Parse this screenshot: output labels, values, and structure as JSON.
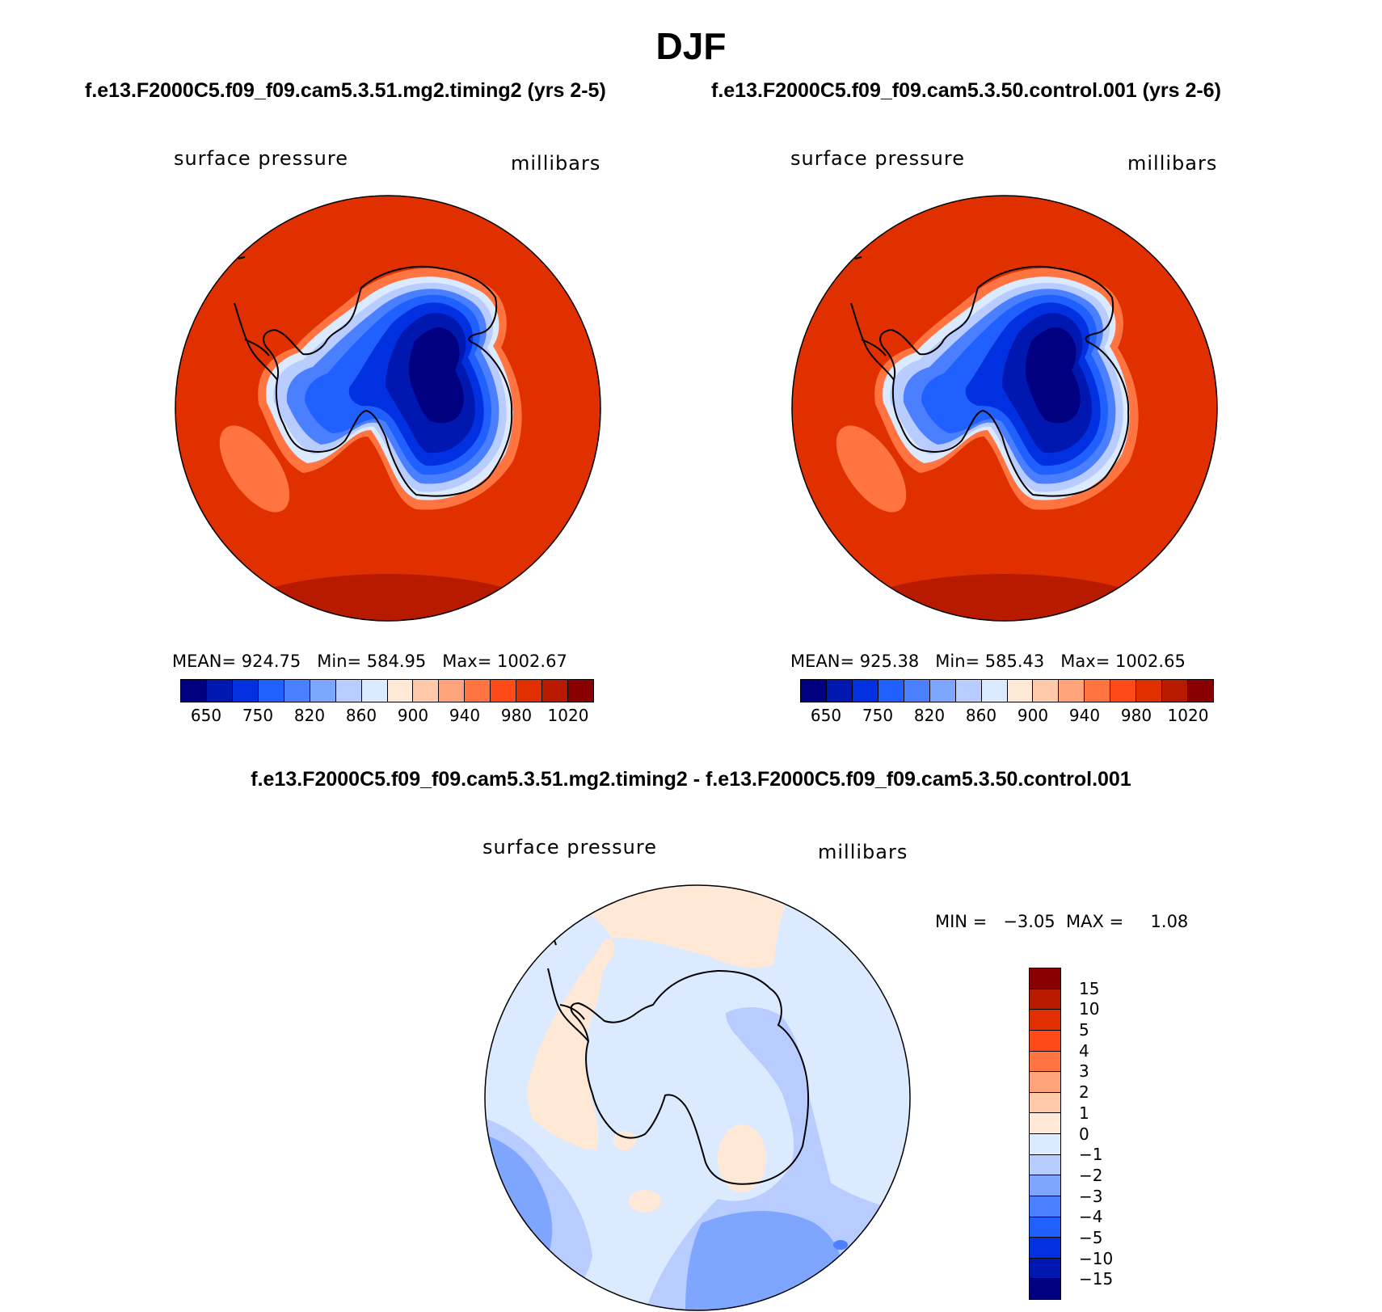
{
  "title": "DJF",
  "case_titles": {
    "left": "f.e13.F2000C5.f09_f09.cam5.3.51.mg2.timing2 (yrs 2-5)",
    "right": "f.e13.F2000C5.f09_f09.cam5.3.50.control.001 (yrs 2-6)",
    "diff": "f.e13.F2000C5.f09_f09.cam5.3.51.mg2.timing2 - f.e13.F2000C5.f09_f09.cam5.3.50.control.001"
  },
  "panels": {
    "left": {
      "variable": "surface pressure",
      "units": "millibars",
      "stats": "MEAN= 924.75   Min= 584.95   Max= 1002.67"
    },
    "right": {
      "variable": "surface pressure",
      "units": "millibars",
      "stats": "MEAN= 925.38   Min= 585.43   Max= 1002.65"
    },
    "diff": {
      "variable": "surface pressure",
      "units": "millibars",
      "stats": "MIN =   −3.05  MAX =     1.08"
    }
  },
  "colorbar_main": {
    "colors": [
      "#000080",
      "#0018b0",
      "#0030e0",
      "#2060ff",
      "#4a80ff",
      "#7ea6ff",
      "#b8ccff",
      "#dceaff",
      "#ffe8d6",
      "#ffc9aa",
      "#ffa37a",
      "#ff7440",
      "#ff4a18",
      "#e03000",
      "#b81a00",
      "#880000"
    ],
    "tick_labels": [
      "650",
      "750",
      "820",
      "860",
      "900",
      "940",
      "980",
      "1020"
    ]
  },
  "colorbar_diff": {
    "colors": [
      "#880000",
      "#b81a00",
      "#e03000",
      "#ff4a18",
      "#ff7440",
      "#ffa37a",
      "#ffc9aa",
      "#ffe8d6",
      "#dceaff",
      "#b8ccff",
      "#7ea6ff",
      "#4a80ff",
      "#2060ff",
      "#0030e0",
      "#0018b0",
      "#000080"
    ],
    "tick_labels": [
      "15",
      "10",
      "5",
      "4",
      "3",
      "2",
      "1",
      "0",
      "−1",
      "−2",
      "−3",
      "−4",
      "−5",
      "−10",
      "−15"
    ]
  },
  "map_colors": {
    "ocean": "#e03000",
    "ocean_edge": "#b81a00",
    "ice_deep": "#000080",
    "ice_1": "#0018b0",
    "ice_2": "#0030e0",
    "ice_3": "#2060ff",
    "ice_4": "#4a80ff",
    "ice_5": "#b8ccff",
    "ice_6": "#dceaff",
    "coast_ring": "#ff7440",
    "diff_base": "#dceaff",
    "diff_pos": "#ffe8d6",
    "diff_neg1": "#b8ccff",
    "diff_neg2": "#7ea6ff",
    "diff_neg3": "#4a80ff"
  }
}
